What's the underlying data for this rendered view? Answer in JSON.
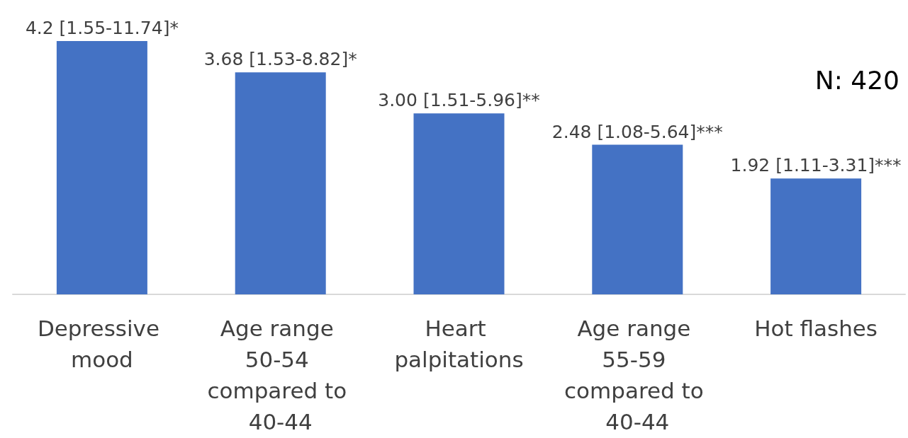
{
  "chart_data": {
    "type": "bar",
    "categories": [
      "Depressive mood",
      "Age range 50-54 compared to 40-44",
      "Heart palpitations",
      "Age range 55-59 compared to 40-44",
      "Hot flashes"
    ],
    "values": [
      4.2,
      3.68,
      3.0,
      2.48,
      1.92
    ],
    "value_labels": [
      "4.2 [1.55-11.74]*",
      "3.68 [1.53-8.82]*",
      "3.00 [1.51-5.96]**",
      "2.48 [1.08-5.64]***",
      "1.92 [1.11-3.31]***"
    ],
    "color": "#4472c4",
    "annotations": [
      "N: 420"
    ]
  }
}
